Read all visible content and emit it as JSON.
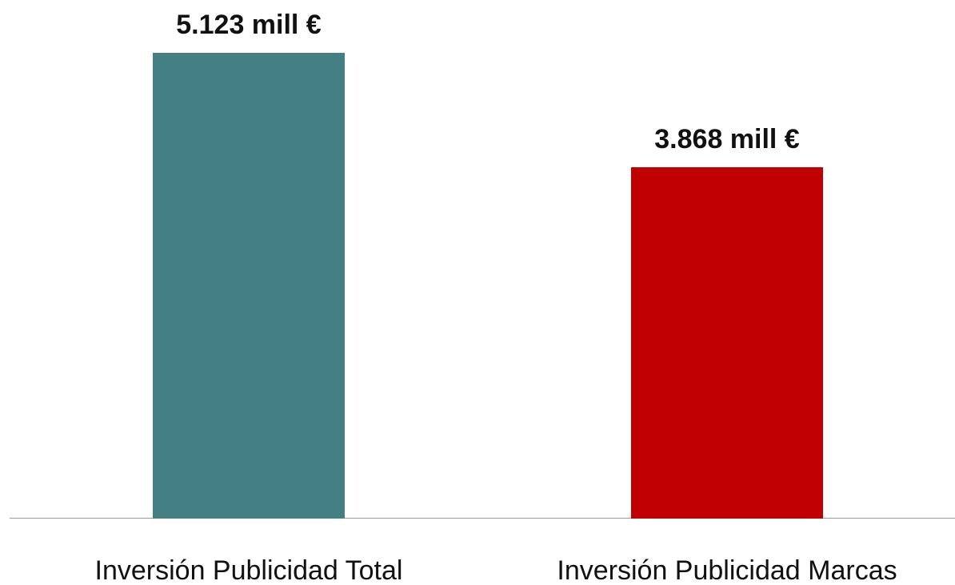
{
  "chart_data": {
    "type": "bar",
    "categories": [
      "Inversión Publicidad Total",
      "Inversión Publicidad Marcas"
    ],
    "values": [
      5123,
      3868
    ],
    "value_labels": [
      "5.123 mill €",
      "3.868 mill €"
    ],
    "colors": [
      "#447f84",
      "#c00000"
    ]
  }
}
